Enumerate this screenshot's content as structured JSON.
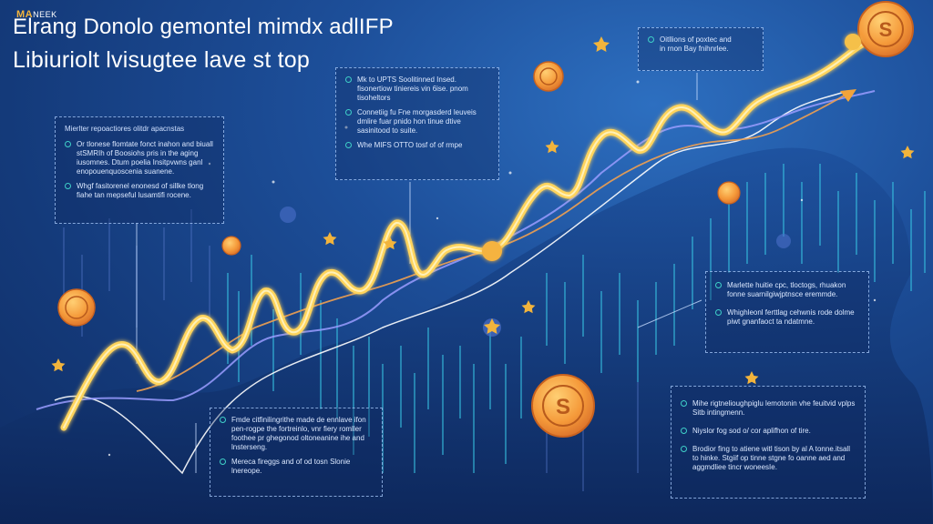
{
  "header": {
    "brand_main": "MA",
    "brand_sub": "NEEK",
    "title_line1": "Elrang Donolo gemontel mimdx adlIFP",
    "title_line2": "Libiuriolt lvisugtee lave st top"
  },
  "callouts": {
    "top_right": {
      "items": [
        "Oitllions of poxtec and",
        "in rnon Bay fnihnrlee."
      ]
    },
    "center_top": {
      "items": [
        "Mk to UPTS Soolitinned Insed. fisonertiow tiniereis vin 6ise. pnom tisoheltors",
        "Connetiig fu Fne morgasderd leuveis dmlire fuar pnido hon tinue dtive sasinitood to suite.",
        "Whe MIFS OTTO tosf of of rmpe"
      ]
    },
    "left": {
      "heading": "Mierlter repoactiores olitdr apacnstas",
      "items": [
        "Or tlonese flomtate fonct inahon and biuall stSMRIh of Boosiohs pris in the aging iusomnes. Dtum poelia Insitpvwns ganl enopouenquoscenia suanene.",
        "Whgf fasitorenel enonesd of sillke tlong fiahe tan mepseful lusamtifi rocene."
      ]
    },
    "right_mid": {
      "items": [
        "Marlette huitie cpc, tloctogs, rhuakon fonne suarnilgiwjptnsce eremmde.",
        "Whighleonl ferttlag cehwnis rode dolme piwt gnanfaoct ta ndatmne."
      ]
    },
    "bottom_center": {
      "items": [
        "Fmde citfinilingrithe made de ennlave ifon pen-rogpe the fortreinlo, vnr fiery romller foothee pr ghegonod oltoneanine ihe and lnsterseng.",
        "Mereca fireggs and of od tosn Slonie lnereope."
      ]
    },
    "bottom_right": {
      "items": [
        "Mihe rigtnelioughpiglu lemotonin vhe feuitvid vplps Sitb intingmenn.",
        "Niyslor fog sod o/ cor aplifhon of tire.",
        "Brodior fing to atiene witl tison by al A tonne.itsall to hinke. Stgiif op tinne stgne fo oanne aed and aggmdliee tincr woneesIe."
      ]
    }
  }
}
